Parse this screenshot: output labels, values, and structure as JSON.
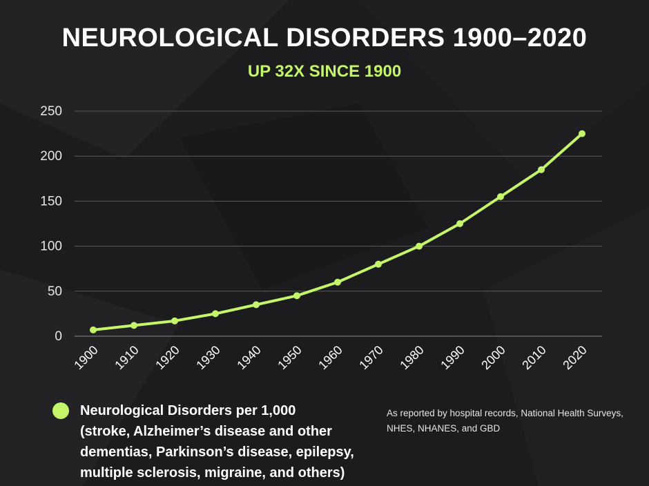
{
  "title": "NEUROLOGICAL DISORDERS 1900–2020",
  "subtitle": "UP 32X SINCE 1900",
  "legend": {
    "label_lines": [
      "Neurological Disorders per 1,000",
      "(stroke, Alzheimer’s disease and other",
      "dementias, Parkinson’s disease, epilepsy,",
      "multiple sclerosis, migraine, and others)"
    ]
  },
  "source": "As reported by hospital records, National Health Surveys, NHES, NHANES, and GBD",
  "colors": {
    "background": "#1c1c1e",
    "accent": "#c4f56a",
    "grid": "#5a5a5a",
    "text": "#ffffff"
  },
  "chart_data": {
    "type": "line",
    "x": [
      "1900",
      "1910",
      "1920",
      "1930",
      "1940",
      "1950",
      "1960",
      "1970",
      "1980",
      "1990",
      "2000",
      "2010",
      "2020"
    ],
    "series": [
      {
        "name": "Neurological Disorders per 1,000",
        "values": [
          7,
          12,
          17,
          25,
          35,
          45,
          60,
          80,
          100,
          125,
          155,
          185,
          225
        ]
      }
    ],
    "y_ticks": [
      "0",
      "50",
      "100",
      "150",
      "200",
      "250"
    ],
    "ylim": [
      0,
      250
    ],
    "grid": true,
    "legend_position": "bottom-left"
  }
}
